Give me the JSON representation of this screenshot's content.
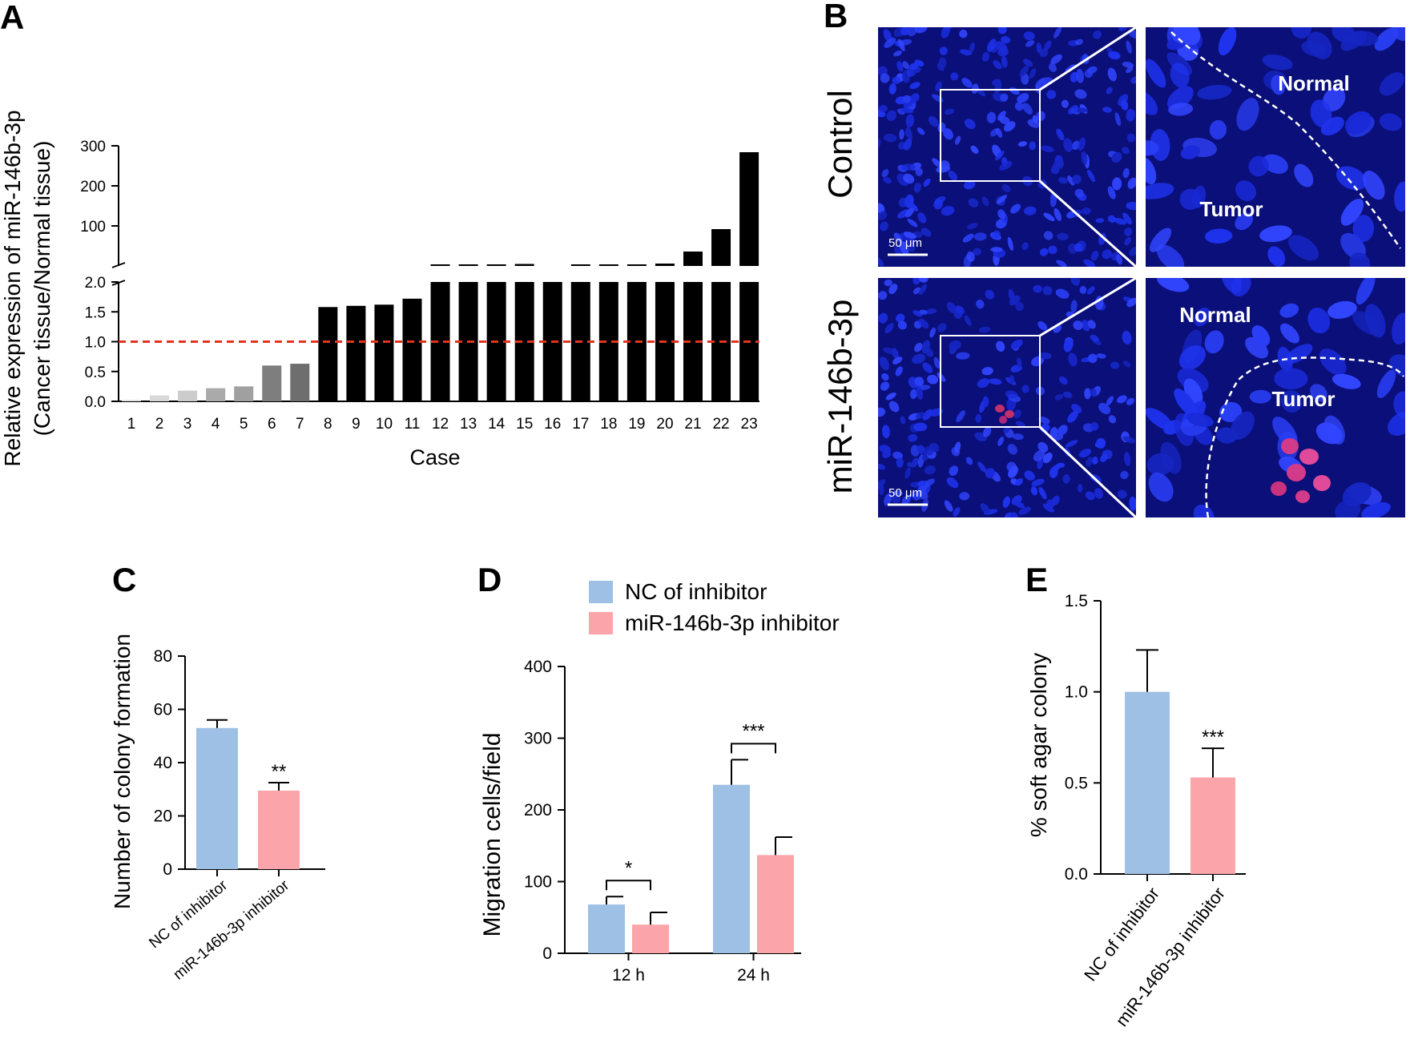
{
  "panel_labels": {
    "a": "A",
    "b": "B",
    "c": "C",
    "d": "D",
    "e": "E"
  },
  "colors": {
    "bar_black": "#000000",
    "nc": "#9ec0e4",
    "inhibitor": "#fba5ab",
    "threshold": "#e3331f",
    "micro_bg": "#0a0f7a",
    "nuclei": "#2436f0"
  },
  "panel_b": {
    "row_labels": [
      "Control",
      "miR-146b-3p"
    ],
    "scale_bar": "50 μm",
    "zoom_labels": {
      "control": {
        "normal": "Normal",
        "tumor": "Tumor"
      },
      "mir": {
        "normal": "Normal",
        "tumor": "Tumor"
      }
    }
  },
  "chart_data": [
    {
      "id": "A",
      "type": "bar",
      "title": "",
      "xlabel": "Case",
      "ylabel_line1": "Relative expression of miR-146b-3p",
      "ylabel_line2": "(Cancer tissue/Normal tissue)",
      "categories": [
        "1",
        "2",
        "3",
        "4",
        "5",
        "6",
        "7",
        "8",
        "9",
        "10",
        "11",
        "12",
        "13",
        "14",
        "15",
        "16",
        "17",
        "18",
        "19",
        "20",
        "21",
        "22",
        "23"
      ],
      "values": [
        0.02,
        0.1,
        0.18,
        0.22,
        0.25,
        0.6,
        0.63,
        1.58,
        1.6,
        1.62,
        1.72,
        2.5,
        3,
        4,
        5,
        2,
        2.5,
        3,
        3.5,
        6,
        36,
        92,
        284
      ],
      "bar_shades": [
        "#d8d8d8",
        "#d8d8d8",
        "#cccccc",
        "#aaaaaa",
        "#a0a0a0",
        "#7e7e7e",
        "#6e6e6e",
        "#000000",
        "#000000",
        "#000000",
        "#000000",
        "#000000",
        "#000000",
        "#000000",
        "#000000",
        "#000000",
        "#000000",
        "#000000",
        "#000000",
        "#000000",
        "#000000",
        "#000000",
        "#000000"
      ],
      "axis_break": true,
      "lower_ylim": [
        0,
        2.0
      ],
      "lower_ticks": [
        "0.0",
        "0.5",
        "1.0",
        "1.5",
        "2.0"
      ],
      "upper_ylim": [
        0,
        300
      ],
      "upper_ticks": [
        "100",
        "200",
        "300"
      ],
      "reference_line": 1.0
    },
    {
      "id": "C",
      "type": "bar",
      "ylabel": "Number of colony formation",
      "categories": [
        "NC of inhibitor",
        "miR-146b-3p inhibitor"
      ],
      "values": [
        53,
        29.5
      ],
      "errors": [
        3,
        3
      ],
      "annotations": [
        "",
        "**"
      ],
      "ylim": [
        0,
        80
      ],
      "yticks": [
        "0",
        "20",
        "40",
        "60",
        "80"
      ]
    },
    {
      "id": "D",
      "type": "bar",
      "ylabel": "Migration cells/field",
      "categories": [
        "12 h",
        "24 h"
      ],
      "series": [
        {
          "name": "NC of inhibitor",
          "values": [
            68,
            235
          ],
          "errors": [
            11,
            35
          ]
        },
        {
          "name": "miR-146b-3p inhibitor",
          "values": [
            40,
            137
          ],
          "errors": [
            17,
            25
          ]
        }
      ],
      "significance": [
        "*",
        "***"
      ],
      "ylim": [
        0,
        400
      ],
      "yticks": [
        "0",
        "100",
        "200",
        "300",
        "400"
      ]
    },
    {
      "id": "E",
      "type": "bar",
      "ylabel": "% soft agar colony",
      "categories": [
        "NC of inhibitor",
        "miR-146b-3p inhibitor"
      ],
      "values": [
        1.0,
        0.53
      ],
      "errors": [
        0.23,
        0.16
      ],
      "annotations": [
        "",
        "***"
      ],
      "ylim": [
        0,
        1.5
      ],
      "yticks": [
        "0.0",
        "0.5",
        "1.0",
        "1.5"
      ]
    }
  ]
}
